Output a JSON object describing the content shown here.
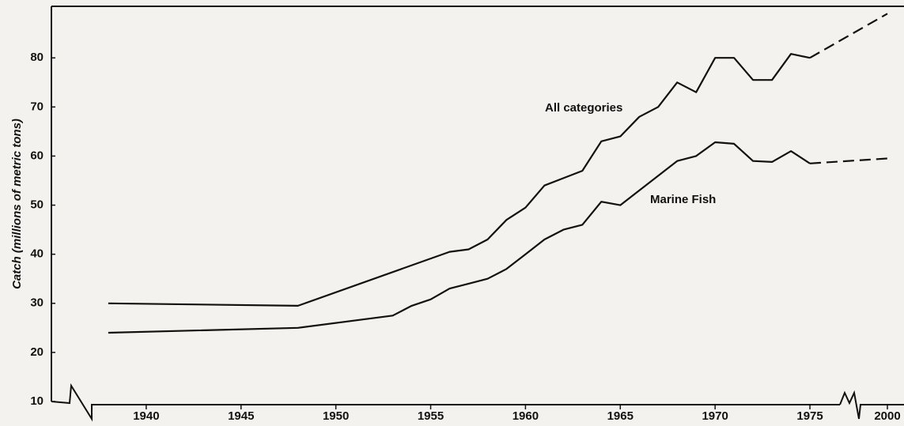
{
  "chart_data": {
    "type": "line",
    "ylabel": "Catch (millions of metric tons)",
    "xlim": [
      1935,
      2000
    ],
    "ylim": [
      10,
      90.5
    ],
    "xticks": [
      1940,
      1945,
      1950,
      1955,
      1960,
      1965,
      1970,
      1975,
      2000
    ],
    "yticks": [
      10,
      20,
      30,
      40,
      50,
      60,
      70,
      80
    ],
    "x_break": 1977,
    "dashed_after": 1975,
    "series": [
      {
        "name": "All categories",
        "color": "#111111",
        "x": [
          1938,
          1948,
          1956,
          1957,
          1958,
          1959,
          1960,
          1961,
          1962,
          1963,
          1964,
          1965,
          1966,
          1967,
          1968,
          1969,
          1970,
          1971,
          1972,
          1973,
          1974,
          1975,
          2000
        ],
        "values": [
          30,
          29.5,
          40.5,
          41,
          43,
          47,
          49.5,
          54,
          55.5,
          57,
          63,
          64,
          68,
          70,
          75,
          73,
          80,
          80,
          75.5,
          75.5,
          80.8,
          80,
          89
        ]
      },
      {
        "name": "Marine Fish",
        "color": "#111111",
        "x": [
          1938,
          1948,
          1953,
          1954,
          1955,
          1956,
          1957,
          1958,
          1959,
          1960,
          1961,
          1962,
          1963,
          1964,
          1965,
          1968,
          1969,
          1970,
          1971,
          1972,
          1973,
          1974,
          1975,
          2000
        ],
        "values": [
          24,
          25,
          27.5,
          29.5,
          30.8,
          33,
          34,
          35,
          37,
          40,
          43,
          45,
          46,
          50.7,
          50,
          59,
          60,
          62.8,
          62.5,
          59,
          58.8,
          61,
          58.5,
          59.5
        ]
      }
    ]
  }
}
